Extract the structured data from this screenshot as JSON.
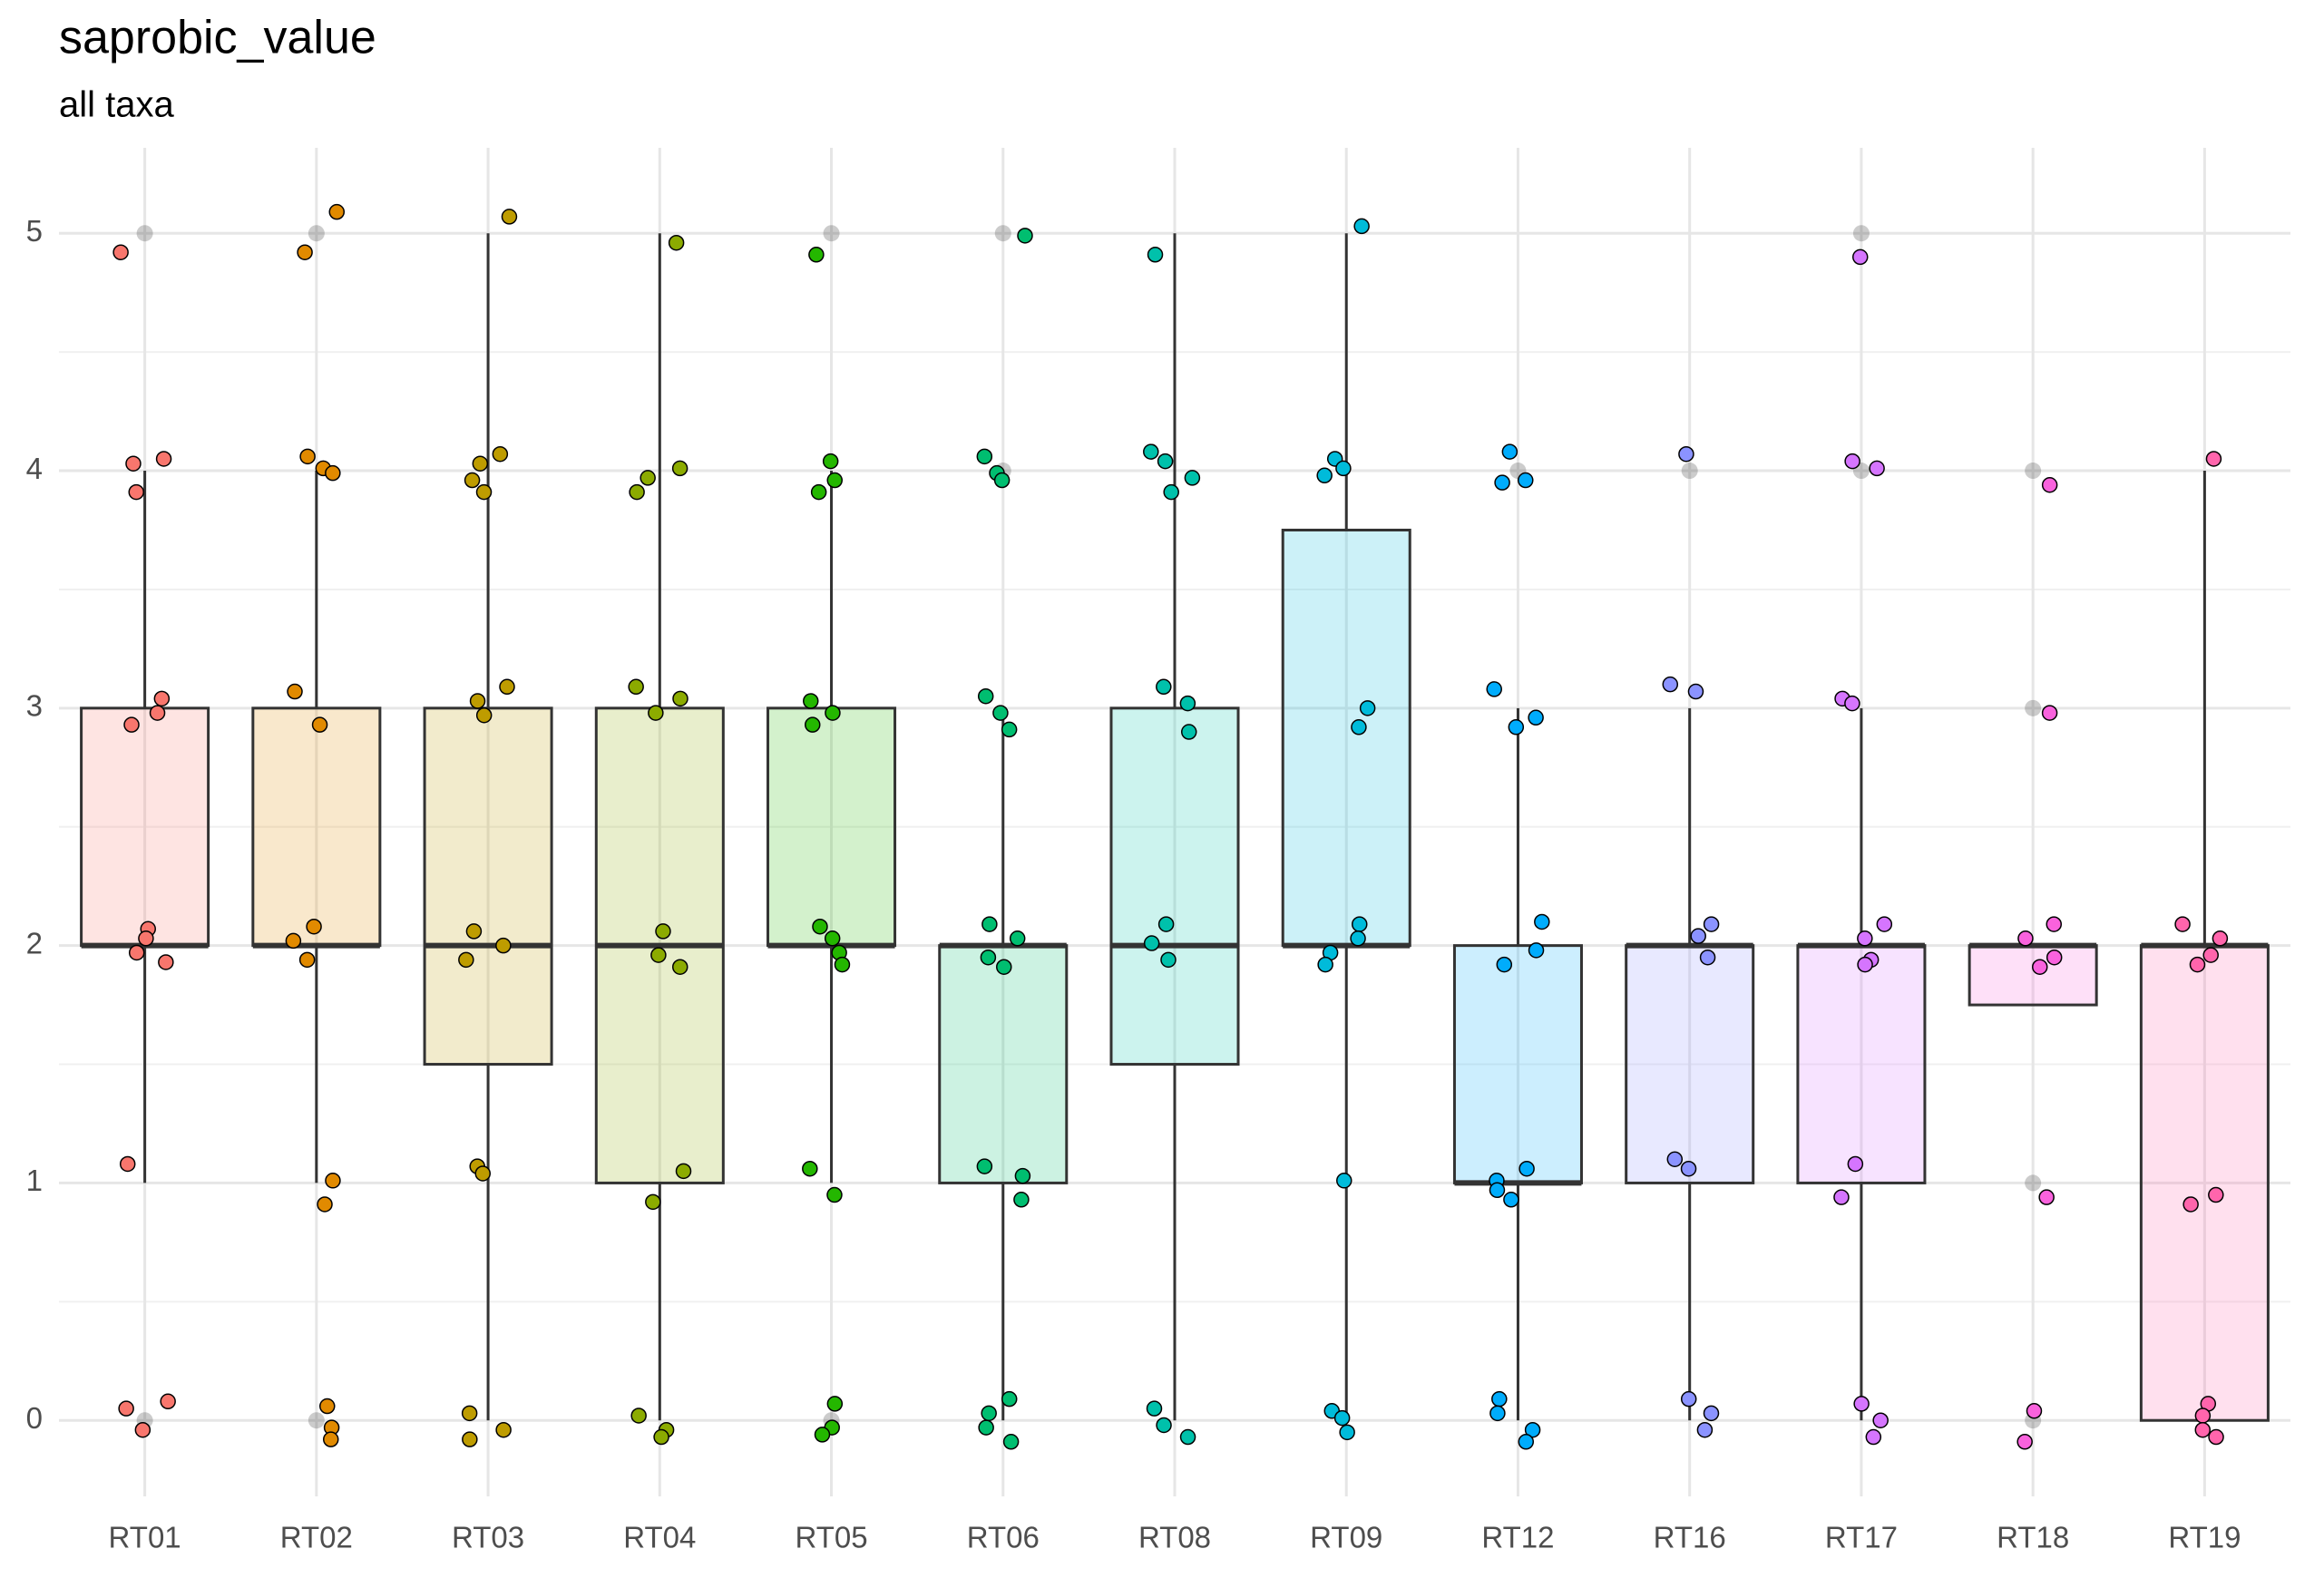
{
  "chart_data": {
    "type": "box",
    "title": "saprobic_value",
    "subtitle": "all taxa",
    "categories": [
      "RT01",
      "RT02",
      "RT03",
      "RT04",
      "RT05",
      "RT06",
      "RT08",
      "RT09",
      "RT12",
      "RT16",
      "RT17",
      "RT18",
      "RT19"
    ],
    "colors": [
      "#F8766D",
      "#E18A00",
      "#BE9C00",
      "#8CAB00",
      "#24B700",
      "#00BE70",
      "#00C1AB",
      "#00BBDA",
      "#00ACFC",
      "#8B93FF",
      "#D575FE",
      "#F962DD",
      "#FF65AC"
    ],
    "boxes": [
      {
        "whisker_low": 1,
        "q1": 2,
        "median": 2,
        "q3": 3,
        "whisker_high": 4,
        "outliers": [
          0,
          5
        ],
        "points": [
          4.92,
          4.03,
          4.05,
          3.91,
          3.04,
          2.98,
          2.93,
          2.07,
          2.03,
          1.97,
          1.93,
          1.08,
          0.08,
          0.05,
          -0.04
        ]
      },
      {
        "whisker_low": 1,
        "q1": 2,
        "median": 2,
        "q3": 3,
        "whisker_high": 4,
        "outliers": [
          0,
          5
        ],
        "points": [
          5.09,
          4.92,
          4.06,
          4.01,
          3.99,
          3.07,
          2.93,
          2.08,
          2.02,
          1.94,
          1.01,
          0.91,
          0.06,
          -0.03,
          -0.08
        ]
      },
      {
        "whisker_low": 0,
        "q1": 1.5,
        "median": 2,
        "q3": 3,
        "whisker_high": 5,
        "outliers": [],
        "points": [
          5.07,
          4.07,
          4.03,
          3.96,
          3.91,
          3.09,
          3.03,
          2.97,
          2.06,
          2.0,
          1.94,
          1.07,
          1.04,
          0.03,
          -0.04,
          -0.08
        ]
      },
      {
        "whisker_low": 0,
        "q1": 1,
        "median": 2,
        "q3": 3,
        "whisker_high": 5,
        "outliers": [],
        "points": [
          4.96,
          4.01,
          3.97,
          3.91,
          3.09,
          3.04,
          2.98,
          2.06,
          1.96,
          1.91,
          1.05,
          0.92,
          0.02,
          -0.04,
          -0.07
        ]
      },
      {
        "whisker_low": 1,
        "q1": 2,
        "median": 2,
        "q3": 3,
        "whisker_high": 4,
        "outliers": [
          0,
          5
        ],
        "points": [
          4.91,
          4.04,
          3.96,
          3.91,
          3.03,
          2.98,
          2.93,
          2.08,
          2.03,
          1.97,
          1.92,
          1.06,
          0.95,
          0.07,
          -0.03,
          -0.06
        ]
      },
      {
        "whisker_low": 0,
        "q1": 1,
        "median": 2,
        "q3": 2,
        "whisker_high": 3,
        "outliers": [
          4,
          5
        ],
        "points": [
          4.99,
          4.06,
          3.99,
          3.96,
          3.05,
          2.98,
          2.91,
          2.09,
          2.03,
          1.95,
          1.91,
          1.07,
          1.03,
          0.93,
          0.09,
          0.03,
          -0.03,
          -0.09
        ]
      },
      {
        "whisker_low": 0,
        "q1": 1.5,
        "median": 2,
        "q3": 3,
        "whisker_high": 5,
        "outliers": [],
        "points": [
          4.91,
          4.08,
          4.04,
          3.97,
          3.91,
          3.09,
          3.02,
          2.9,
          2.09,
          2.01,
          1.94,
          0.05,
          -0.02,
          -0.07
        ]
      },
      {
        "whisker_low": 0,
        "q1": 2,
        "median": 2,
        "q3": 3.75,
        "whisker_high": 5,
        "outliers": [],
        "points": [
          5.03,
          4.05,
          4.01,
          3.98,
          3.0,
          2.92,
          2.09,
          2.03,
          1.97,
          1.92,
          1.01,
          0.04,
          0.01,
          -0.05
        ]
      },
      {
        "whisker_low": 0,
        "q1": 1,
        "median": 1,
        "q3": 2,
        "whisker_high": 3,
        "outliers": [
          4
        ],
        "points": [
          4.08,
          3.96,
          3.95,
          3.08,
          2.96,
          2.92,
          2.1,
          1.98,
          1.92,
          1.06,
          1.01,
          0.97,
          0.93,
          0.09,
          0.03,
          -0.04,
          -0.09
        ]
      },
      {
        "whisker_low": 0,
        "q1": 1,
        "median": 2,
        "q3": 2,
        "whisker_high": 3,
        "outliers": [
          4
        ],
        "points": [
          4.07,
          3.1,
          3.07,
          2.09,
          2.04,
          1.95,
          1.1,
          1.06,
          0.09,
          0.03,
          -0.04
        ]
      },
      {
        "whisker_low": 0,
        "q1": 1,
        "median": 2,
        "q3": 2,
        "whisker_high": 3,
        "outliers": [
          4,
          5
        ],
        "points": [
          4.9,
          4.04,
          4.01,
          3.04,
          3.02,
          2.09,
          2.03,
          1.94,
          1.92,
          1.08,
          0.94,
          0.07,
          0.0,
          -0.07
        ]
      },
      {
        "whisker_low": 1.75,
        "q1": 1.75,
        "median": 2,
        "q3": 2,
        "whisker_high": 2,
        "outliers": [
          0,
          1,
          3,
          4
        ],
        "points": [
          3.94,
          2.98,
          2.09,
          2.03,
          1.95,
          1.91,
          0.94,
          0.04,
          -0.09
        ]
      },
      {
        "whisker_low": 0,
        "q1": 0,
        "median": 2,
        "q3": 2,
        "whisker_high": 4,
        "outliers": [],
        "points": [
          4.05,
          2.09,
          2.03,
          1.96,
          1.92,
          0.95,
          0.91,
          0.07,
          0.02,
          -0.04,
          -0.07
        ]
      }
    ],
    "ylim": [
      -0.32,
      5.36
    ],
    "yticks": [
      0,
      1,
      2,
      3,
      4,
      5
    ],
    "yminor_ticks": [
      0.5,
      1.5,
      2.5,
      3.5,
      4.5
    ],
    "grid": true
  }
}
